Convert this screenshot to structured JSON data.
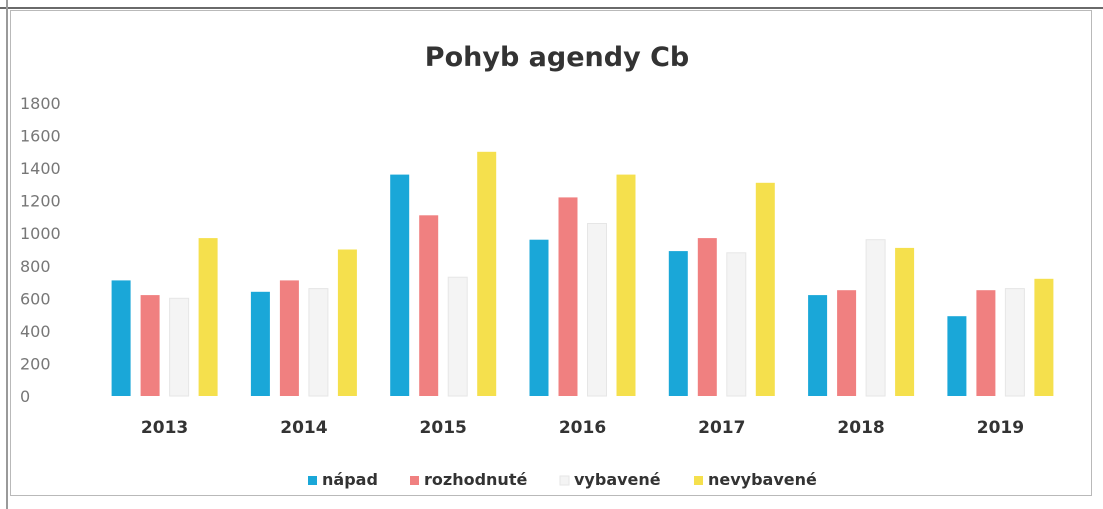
{
  "chart_data": {
    "type": "bar",
    "title": "Pohyb agendy Cb",
    "xlabel": "",
    "ylabel": "",
    "ylim": [
      0,
      1800
    ],
    "yticks": [
      0,
      200,
      400,
      600,
      800,
      1000,
      1200,
      1400,
      1600,
      1800
    ],
    "categories": [
      "2013",
      "2014",
      "2015",
      "2016",
      "2017",
      "2018",
      "2019"
    ],
    "series": [
      {
        "name": "nápad",
        "color": "#1aa7d8",
        "values": [
          710,
          640,
          1360,
          960,
          890,
          620,
          490
        ]
      },
      {
        "name": "rozhodnuté",
        "color": "#f08080",
        "values": [
          620,
          710,
          1110,
          1220,
          970,
          650,
          650
        ]
      },
      {
        "name": "vybavené",
        "color": "#f4f4f4",
        "values": [
          600,
          660,
          730,
          1060,
          880,
          960,
          660
        ]
      },
      {
        "name": "nevybavené",
        "color": "#f5e04d",
        "values": [
          970,
          900,
          1500,
          1360,
          1310,
          910,
          720
        ]
      }
    ],
    "grid": false,
    "legend": "bottom"
  }
}
